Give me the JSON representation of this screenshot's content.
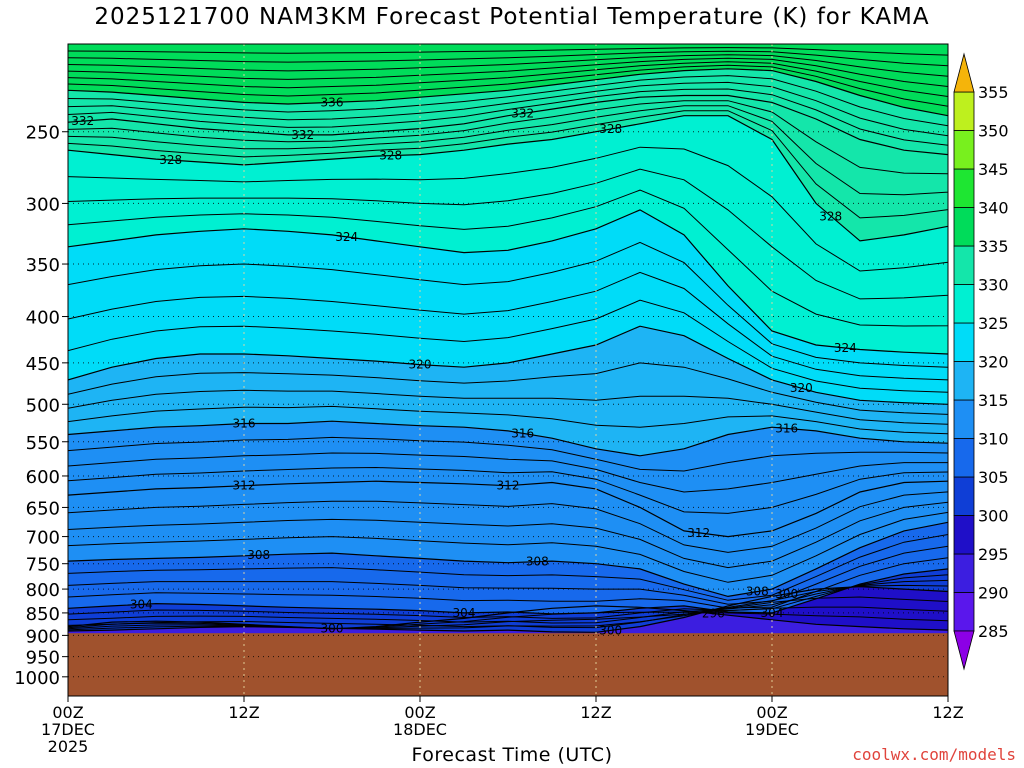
{
  "title": "2025121700 NAM3KM Forecast Potential Temperature (K) for KAMA",
  "watermark": "coolwx.com/models",
  "chart_data": {
    "type": "contour",
    "title": "2025121700 NAM3KM Forecast Potential Temperature (K) for KAMA",
    "xlabel": "Forecast Time (UTC)",
    "ylabel": "Pressure (hPa)",
    "x_range_hours": [
      0,
      60
    ],
    "y_range_hpa": [
      200,
      1050
    ],
    "ground_level_hpa": 895,
    "x_ticks": [
      {
        "hour": 0,
        "lines": [
          "00Z",
          "17DEC",
          "2025"
        ]
      },
      {
        "hour": 12,
        "lines": [
          "12Z"
        ]
      },
      {
        "hour": 24,
        "lines": [
          "00Z",
          "18DEC"
        ]
      },
      {
        "hour": 36,
        "lines": [
          "12Z"
        ]
      },
      {
        "hour": 48,
        "lines": [
          "00Z",
          "19DEC"
        ]
      },
      {
        "hour": 60,
        "lines": [
          "12Z"
        ]
      }
    ],
    "y_ticks": [
      250,
      300,
      350,
      400,
      450,
      500,
      550,
      600,
      650,
      700,
      750,
      800,
      850,
      900,
      950,
      1000
    ],
    "colorbar": {
      "levels": [
        285,
        290,
        295,
        300,
        305,
        310,
        315,
        320,
        325,
        330,
        335,
        340,
        345,
        350,
        355
      ],
      "colors": [
        "#8c00e6",
        "#5a17ec",
        "#3c1ee0",
        "#1f0fc8",
        "#0f3ed6",
        "#1769ec",
        "#1e8ff4",
        "#1eb4f4",
        "#00dcf8",
        "#00f0d2",
        "#14e6aa",
        "#00dc5a",
        "#1ee632",
        "#78f01e",
        "#bef01e",
        "#f0f01e",
        "#fada1e",
        "#f5b40a"
      ]
    },
    "isentropes": [
      {
        "theta": 296,
        "p": [
          880,
          870,
          868,
          870,
          875,
          880,
          885,
          880,
          870,
          862,
          850,
          840,
          835,
          838,
          845,
          855,
          865,
          875,
          880,
          885,
          888
        ],
        "labels": [
          {
            "hour": 44,
            "text": "296"
          }
        ]
      },
      {
        "theta": 300,
        "p": [
          890,
          888,
          885,
          882,
          880,
          882,
          884,
          886,
          888,
          890,
          888,
          892,
          893,
          880,
          860,
          835,
          815,
          800,
          795,
          800,
          805,
          810,
          815,
          820,
          825
        ],
        "labels": [
          {
            "hour": 18,
            "text": "300"
          },
          {
            "hour": 37,
            "text": "300"
          },
          {
            "hour": 49,
            "text": "300"
          }
        ]
      },
      {
        "theta": 304,
        "p": [
          840,
          835,
          830,
          832,
          835,
          838,
          840,
          842,
          845,
          850,
          848,
          852,
          850,
          840,
          835,
          848,
          850,
          820,
          790,
          770,
          760,
          765,
          770,
          775,
          780
        ],
        "labels": [
          {
            "hour": 5,
            "text": "304"
          },
          {
            "hour": 27,
            "text": "304"
          },
          {
            "hour": 48,
            "text": "304"
          }
        ]
      },
      {
        "theta": 308,
        "p": [
          745,
          742,
          740,
          738,
          735,
          732,
          730,
          735,
          740,
          745,
          748,
          745,
          750,
          760,
          790,
          815,
          800,
          760,
          720,
          690,
          675,
          680,
          690,
          695,
          700
        ],
        "labels": [
          {
            "hour": 13,
            "text": "308"
          },
          {
            "hour": 32,
            "text": "308"
          },
          {
            "hour": 47,
            "text": "308"
          }
        ]
      },
      {
        "theta": 312,
        "p": [
          630,
          625,
          620,
          618,
          615,
          612,
          610,
          608,
          610,
          612,
          615,
          610,
          620,
          650,
          690,
          700,
          690,
          660,
          625,
          610,
          608,
          612,
          615,
          618,
          620
        ],
        "labels": [
          {
            "hour": 12,
            "text": "312"
          },
          {
            "hour": 30,
            "text": "312"
          },
          {
            "hour": 43,
            "text": "312"
          }
        ]
      },
      {
        "theta": 316,
        "p": [
          540,
          535,
          530,
          528,
          525,
          525,
          522,
          525,
          528,
          530,
          535,
          545,
          560,
          570,
          560,
          540,
          530,
          535,
          545,
          550,
          552,
          555,
          555,
          558,
          560
        ],
        "labels": [
          {
            "hour": 12,
            "text": "316"
          },
          {
            "hour": 31,
            "text": "316"
          },
          {
            "hour": 49,
            "text": "316"
          }
        ]
      },
      {
        "theta": 320,
        "p": [
          470,
          455,
          445,
          440,
          440,
          442,
          445,
          448,
          452,
          455,
          450,
          440,
          430,
          410,
          420,
          445,
          470,
          485,
          495,
          498,
          500,
          500,
          498,
          495,
          495
        ],
        "labels": [
          {
            "hour": 24,
            "text": "320"
          },
          {
            "hour": 50,
            "text": "320"
          }
        ]
      },
      {
        "theta": 324,
        "p": [
          335,
          330,
          325,
          322,
          320,
          322,
          325,
          330,
          335,
          340,
          338,
          330,
          320,
          305,
          325,
          370,
          415,
          430,
          435,
          438,
          440,
          440,
          438,
          436,
          435
        ],
        "labels": [
          {
            "hour": 19,
            "text": "324"
          },
          {
            "hour": 53,
            "text": "324"
          }
        ]
      },
      {
        "theta": 328,
        "p": [
          262,
          265,
          268,
          270,
          272,
          270,
          268,
          266,
          265,
          262,
          258,
          255,
          250,
          245,
          240,
          240,
          255,
          300,
          330,
          325,
          318,
          310,
          305,
          300,
          298
        ],
        "labels": [
          {
            "hour": 7,
            "text": "328"
          },
          {
            "hour": 22,
            "text": "328"
          },
          {
            "hour": 37,
            "text": "328"
          },
          {
            "hour": 52,
            "text": "328"
          }
        ]
      },
      {
        "theta": 332,
        "p": [
          244,
          242,
          245,
          248,
          250,
          252,
          252,
          250,
          248,
          245,
          240,
          236,
          232,
          229,
          228,
          228,
          232,
          242,
          255,
          262,
          265,
          265,
          263,
          262,
          262
        ],
        "labels": [
          {
            "hour": 1,
            "text": "332"
          },
          {
            "hour": 16,
            "text": "332"
          },
          {
            "hour": 31,
            "text": "332"
          }
        ]
      },
      {
        "theta": 336,
        "p": [
          225,
          226,
          228,
          230,
          232,
          233,
          232,
          231,
          229,
          227,
          225,
          222,
          219,
          216,
          214,
          213,
          214,
          220,
          228,
          235,
          240,
          243,
          245,
          245,
          245
        ],
        "labels": [
          {
            "hour": 18,
            "text": "336"
          }
        ]
      }
    ]
  }
}
